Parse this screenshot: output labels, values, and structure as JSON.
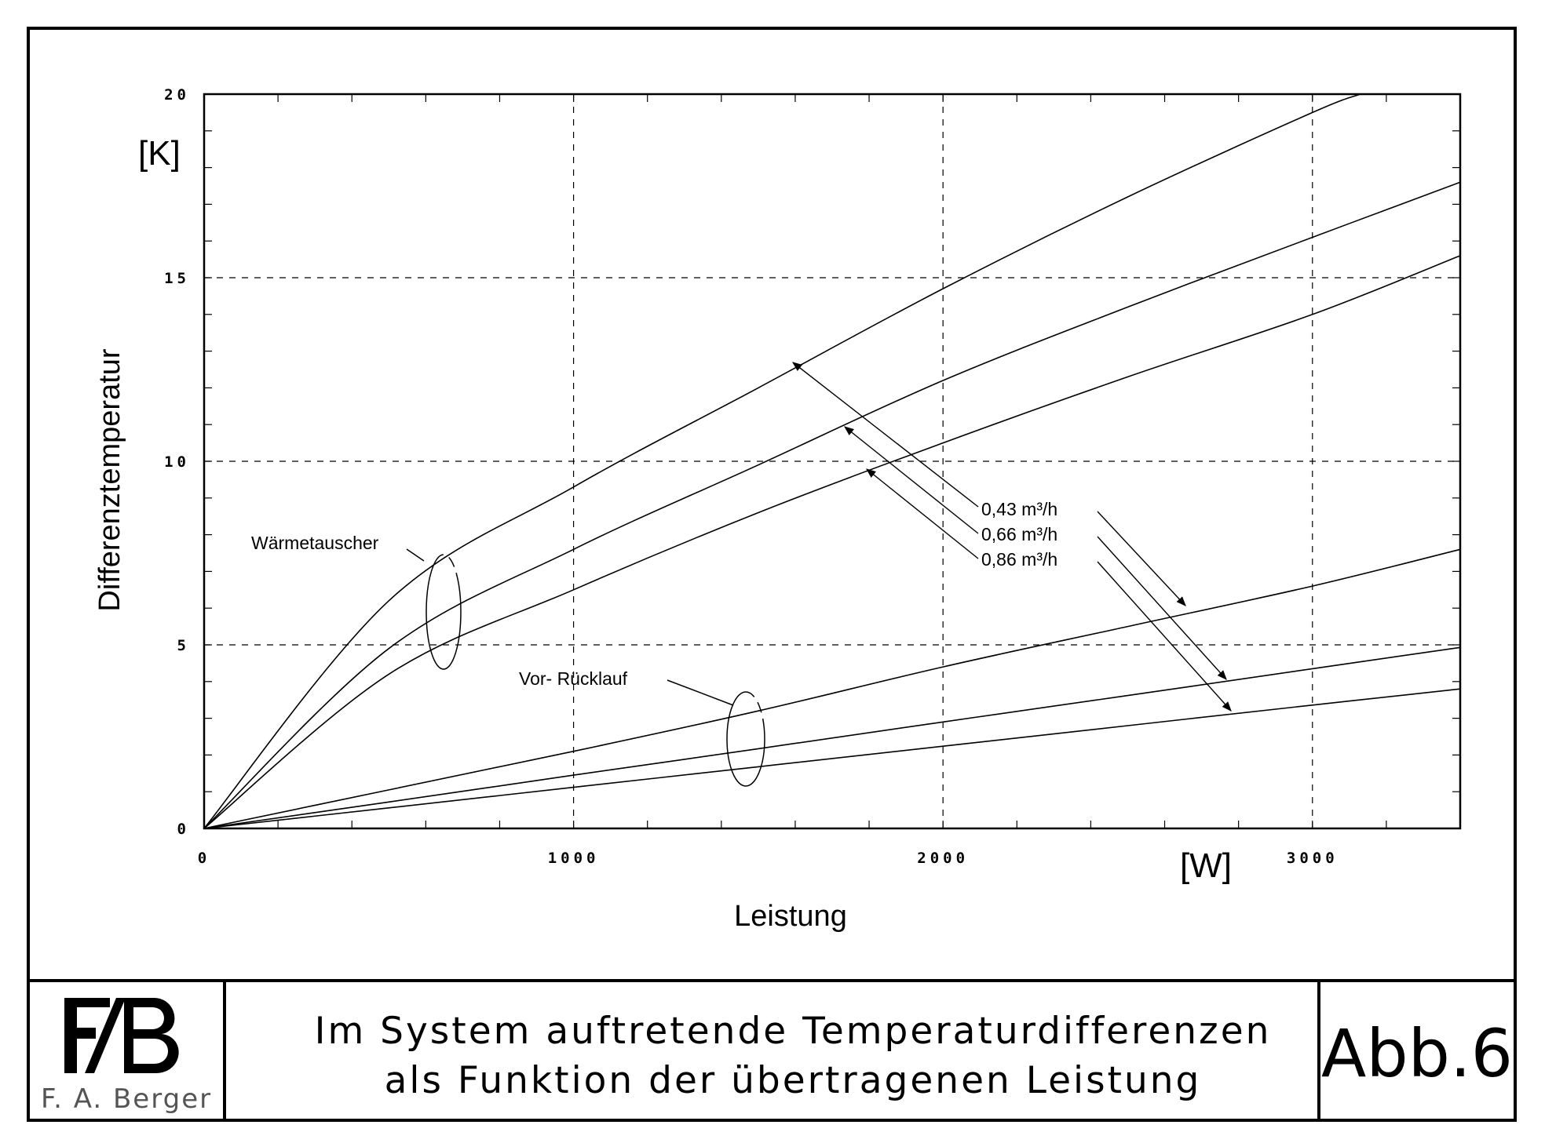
{
  "chart_data": {
    "type": "line",
    "xlabel": "Leistung",
    "ylabel": "Differenztemperatur",
    "x_unit": "[W]",
    "y_unit": "[K]",
    "xlim": [
      0,
      3400
    ],
    "ylim": [
      0,
      20
    ],
    "xticks": [
      0,
      1000,
      2000,
      3000
    ],
    "yticks": [
      0,
      5,
      10,
      15,
      20
    ],
    "xtick_labels": [
      "0",
      "1000",
      "2000",
      "3000"
    ],
    "ytick_labels": [
      "0",
      "5",
      "10",
      "15",
      "20"
    ],
    "grid": "dashed at labeled ticks",
    "series": [
      {
        "name": "0,43 m³/h",
        "group": "Wärmetauscher",
        "x": [
          0,
          500,
          1000,
          1500,
          2000,
          2500,
          3000,
          3130
        ],
        "y": [
          0,
          6.2,
          9.3,
          12.0,
          14.7,
          17.2,
          19.5,
          20.0
        ]
      },
      {
        "name": "0,66 m³/h",
        "group": "Wärmetauscher",
        "x": [
          0,
          500,
          1000,
          1500,
          2000,
          2500,
          3000,
          3400
        ],
        "y": [
          0,
          4.9,
          7.6,
          9.9,
          12.2,
          14.2,
          16.1,
          17.6
        ]
      },
      {
        "name": "0,86 m³/h",
        "group": "Wärmetauscher",
        "x": [
          0,
          500,
          1000,
          1500,
          2000,
          2500,
          3000,
          3400
        ],
        "y": [
          0,
          4.2,
          6.5,
          8.6,
          10.5,
          12.3,
          14.0,
          15.6
        ]
      },
      {
        "name": "0,43 m³/h",
        "group": "Vor- Rücklauf",
        "x": [
          0,
          500,
          1000,
          1500,
          2000,
          2500,
          3000,
          3400
        ],
        "y": [
          0,
          1.05,
          2.1,
          3.2,
          4.4,
          5.5,
          6.6,
          7.6
        ]
      },
      {
        "name": "0,66 m³/h",
        "group": "Vor- Rücklauf",
        "x": [
          0,
          500,
          1000,
          1500,
          2000,
          2500,
          3000,
          3400
        ],
        "y": [
          0,
          0.72,
          1.45,
          2.17,
          2.9,
          3.62,
          4.35,
          4.93
        ]
      },
      {
        "name": "0,86 m³/h",
        "group": "Vor- Rücklauf",
        "x": [
          0,
          500,
          1000,
          1500,
          2000,
          2500,
          3000,
          3400
        ],
        "y": [
          0,
          0.56,
          1.12,
          1.68,
          2.24,
          2.8,
          3.36,
          3.8
        ]
      }
    ],
    "annotations": {
      "heat_exchanger": "Wärmetauscher",
      "supply_return": "Vor- Rücklauf",
      "flow_labels": [
        "0,43 m³/h",
        "0,66 m³/h",
        "0,86 m³/h"
      ]
    }
  },
  "title_block": {
    "logo_letters": "FAB",
    "author": "F. A. Berger",
    "title_line1": "Im System auftretende Temperaturdifferenzen",
    "title_line2": "als Funktion der übertragenen Leistung",
    "figure_number": "Abb.6"
  }
}
